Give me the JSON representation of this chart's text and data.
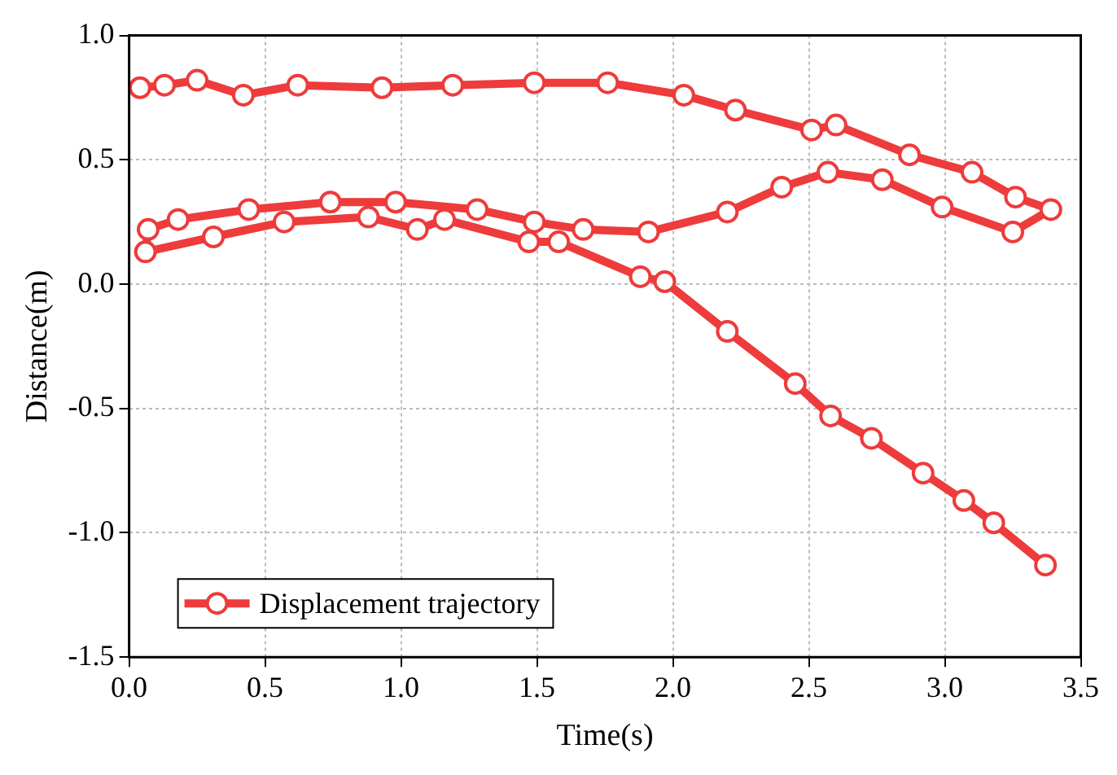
{
  "chart_data": {
    "type": "line",
    "xlabel": "Time(s)",
    "ylabel": "Distance(m)",
    "xlim": [
      0,
      3.5
    ],
    "xticks": [
      {
        "value": 0,
        "label": "0.0"
      },
      {
        "value": 0.5,
        "label": "0.5"
      },
      {
        "value": 1,
        "label": "1.0"
      },
      {
        "value": 1.5,
        "label": "1.5"
      },
      {
        "value": 2,
        "label": "2.0"
      },
      {
        "value": 2.5,
        "label": "2.5"
      },
      {
        "value": 3,
        "label": "3.0"
      },
      {
        "value": 3.5,
        "label": "3.5"
      }
    ],
    "ylim": [
      -1.5,
      1
    ],
    "yticks": [
      {
        "value": -1.5,
        "label": "-1.5"
      },
      {
        "value": -1,
        "label": "-1.0"
      },
      {
        "value": -0.5,
        "label": "-0.5"
      },
      {
        "value": 0,
        "label": "0.0"
      },
      {
        "value": 0.5,
        "label": "0.5"
      },
      {
        "value": 1,
        "label": "1.0"
      }
    ],
    "grid": true,
    "legend": "bottom left",
    "marker": "circle",
    "line_style": "solid",
    "series": [
      {
        "name": "Displacement trajectory",
        "color": "#ee3b3b",
        "x": [
          0.04,
          0.13,
          0.25,
          0.42,
          0.62,
          0.93,
          1.19,
          1.49,
          1.76,
          2.04,
          2.23,
          2.51,
          2.6,
          2.87,
          3.1,
          3.26,
          3.39,
          3.25,
          2.99,
          2.77,
          2.57,
          2.4,
          2.2,
          1.91,
          1.67,
          1.49,
          1.28,
          0.98,
          0.74,
          0.44,
          0.18,
          0.07,
          0.06,
          0.31,
          0.57,
          0.88,
          1.06,
          1.16,
          1.47,
          1.58,
          1.88,
          1.97,
          2.2,
          2.45,
          2.58,
          2.73,
          2.92,
          3.07,
          3.18,
          3.37
        ],
        "values": [
          0.79,
          0.8,
          0.82,
          0.76,
          0.8,
          0.79,
          0.8,
          0.81,
          0.81,
          0.76,
          0.7,
          0.62,
          0.64,
          0.52,
          0.45,
          0.35,
          0.3,
          0.21,
          0.31,
          0.42,
          0.45,
          0.39,
          0.29,
          0.21,
          0.22,
          0.25,
          0.3,
          0.33,
          0.33,
          0.3,
          0.26,
          0.22,
          0.13,
          0.19,
          0.25,
          0.27,
          0.22,
          0.26,
          0.17,
          0.17,
          0.03,
          0.01,
          -0.19,
          -0.4,
          -0.53,
          -0.62,
          -0.76,
          -0.87,
          -0.96,
          -1.13
        ]
      }
    ]
  }
}
